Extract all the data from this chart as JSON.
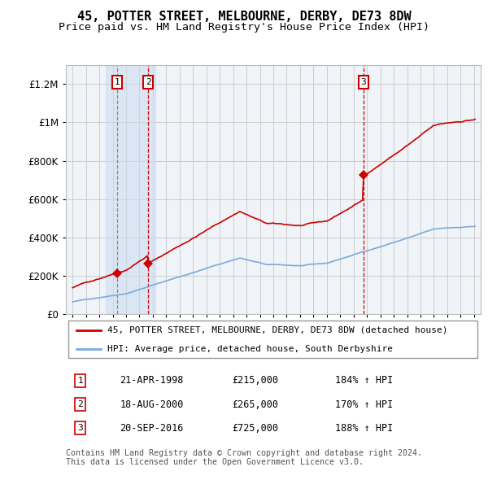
{
  "title": "45, POTTER STREET, MELBOURNE, DERBY, DE73 8DW",
  "subtitle": "Price paid vs. HM Land Registry's House Price Index (HPI)",
  "ytick_values": [
    0,
    200000,
    400000,
    600000,
    800000,
    1000000,
    1200000
  ],
  "ylim": [
    0,
    1300000
  ],
  "xlim_start": 1994.5,
  "xlim_end": 2025.5,
  "sale_color": "#cc0000",
  "hpi_color": "#7aaadd",
  "background_color": "#ffffff",
  "plot_bg_color": "#f0f4f8",
  "grid_color": "#cccccc",
  "sale_dates": [
    1998.31,
    2000.64,
    2016.73
  ],
  "sale_prices": [
    215000,
    265000,
    725000
  ],
  "sale_labels": [
    "1",
    "2",
    "3"
  ],
  "shade_x_start": 1997.5,
  "shade_x_end": 2001.2,
  "vline1_x": 1998.31,
  "vline2_x": 2000.64,
  "vline3_x": 2016.73,
  "legend_entries": [
    "45, POTTER STREET, MELBOURNE, DERBY, DE73 8DW (detached house)",
    "HPI: Average price, detached house, South Derbyshire"
  ],
  "table_rows": [
    [
      "1",
      "21-APR-1998",
      "£215,000",
      "184% ↑ HPI"
    ],
    [
      "2",
      "18-AUG-2000",
      "£265,000",
      "170% ↑ HPI"
    ],
    [
      "3",
      "20-SEP-2016",
      "£725,000",
      "188% ↑ HPI"
    ]
  ],
  "footnote": "Contains HM Land Registry data © Crown copyright and database right 2024.\nThis data is licensed under the Open Government Licence v3.0."
}
